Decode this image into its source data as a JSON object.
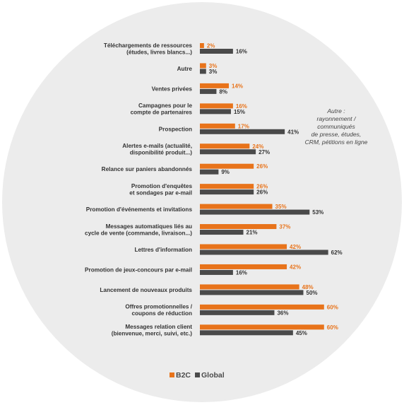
{
  "chart_data": {
    "type": "bar",
    "orientation": "horizontal",
    "unit": "%",
    "categories": [
      [
        "Téléchargements de ressources",
        "(études, livres blancs...)"
      ],
      [
        "Autre"
      ],
      [
        "Ventes privées"
      ],
      [
        "Campagnes pour le",
        "compte de partenaires"
      ],
      [
        "Prospection"
      ],
      [
        "Alertes e-mails (actualité,",
        "disponibilité produit...)"
      ],
      [
        "Relance sur paniers abandonnés"
      ],
      [
        "Promotion d'enquêtes",
        "et sondages par e-mail"
      ],
      [
        "Promotion d'événements et invitations"
      ],
      [
        "Messages automatiques liés au",
        "cycle de vente (commande, livraison...)"
      ],
      [
        "Lettres d'information"
      ],
      [
        "Promotion de jeux-concours par e-mail"
      ],
      [
        "Lancement de nouveaux produits"
      ],
      [
        "Offres promotionnelles /",
        "coupons de réduction"
      ],
      [
        "Messages relation client",
        "(bienvenue, merci, suivi, etc.)"
      ]
    ],
    "series": [
      {
        "name": "B2C",
        "color": "#e8731a",
        "values": [
          2,
          3,
          14,
          16,
          17,
          24,
          26,
          26,
          35,
          37,
          42,
          42,
          48,
          60,
          60
        ]
      },
      {
        "name": "Global",
        "color": "#4a4a4a",
        "values": [
          16,
          3,
          8,
          15,
          41,
          27,
          9,
          26,
          53,
          21,
          62,
          16,
          50,
          36,
          45
        ]
      }
    ],
    "xlim": [
      0,
      70
    ],
    "annotation": [
      "Autre :",
      "rayonnement /",
      "communiqués",
      "de presse, études,",
      "CRM, pétitions en ligne"
    ],
    "legend": {
      "placement": "bottom-center",
      "items": [
        {
          "label": "B2C",
          "color": "#e8731a"
        },
        {
          "label": "Global",
          "color": "#4a4a4a"
        }
      ]
    },
    "background": {
      "shape": "circle",
      "color": "#ececec"
    }
  }
}
